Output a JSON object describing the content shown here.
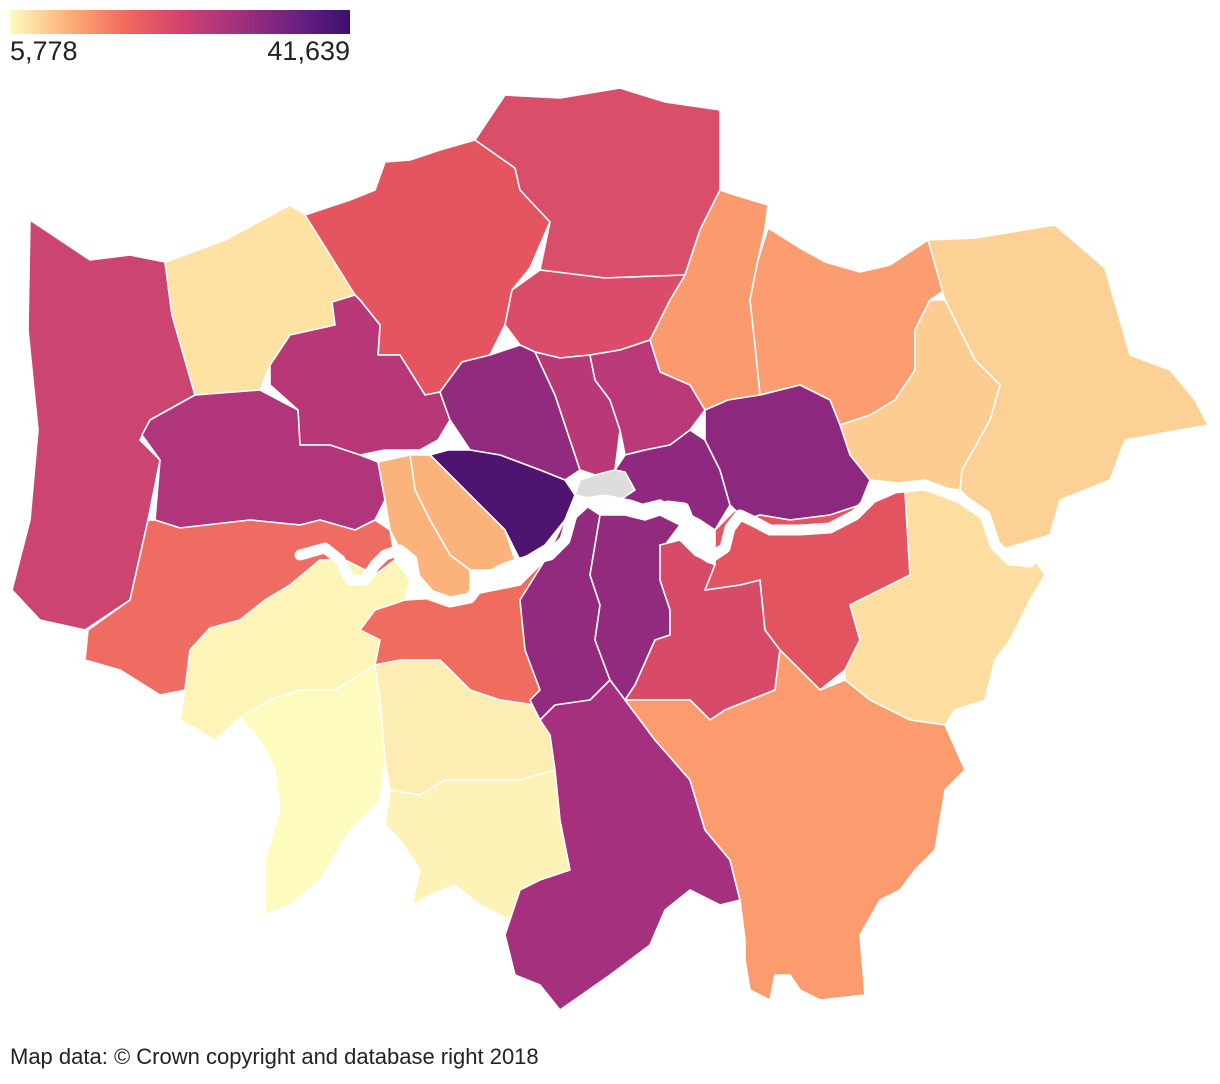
{
  "legend": {
    "min_label": "5,778",
    "max_label": "41,639",
    "min_value": 5778,
    "max_value": 41639,
    "colors": [
      "#fcfdbf",
      "#fcb27a",
      "#f06c5c",
      "#d3436e",
      "#a3307e",
      "#712181",
      "#3b0f70"
    ]
  },
  "attribution": "Map data: © Crown copyright and database right 2018",
  "no_data_color": "#dddddd",
  "boroughs": [
    {
      "name": "hillingdon",
      "color": "#cc4470"
    },
    {
      "name": "harrow",
      "color": "#fde2a4"
    },
    {
      "name": "barnet",
      "color": "#e4555f"
    },
    {
      "name": "enfield",
      "color": "#d94f6a"
    },
    {
      "name": "waltham-forest",
      "color": "#fb9a6d"
    },
    {
      "name": "redbridge",
      "color": "#fb9d70"
    },
    {
      "name": "havering",
      "color": "#fdd095"
    },
    {
      "name": "haringey",
      "color": "#da4d6a"
    },
    {
      "name": "brent",
      "color": "#b83777"
    },
    {
      "name": "ealing",
      "color": "#b0357a"
    },
    {
      "name": "camden",
      "color": "#922a7e"
    },
    {
      "name": "islington",
      "color": "#b93876"
    },
    {
      "name": "hackney",
      "color": "#bb3976"
    },
    {
      "name": "tower-hamlets",
      "color": "#8f297f"
    },
    {
      "name": "newham",
      "color": "#8d287f"
    },
    {
      "name": "barking-dagenham",
      "color": "#fdcc90"
    },
    {
      "name": "westminster",
      "color": "#4f146f"
    },
    {
      "name": "city-of-london",
      "color": "#dddddd"
    },
    {
      "name": "kensington-chelsea",
      "color": "#fcb37b"
    },
    {
      "name": "hammersmith-fulham",
      "color": "#fcb37b"
    },
    {
      "name": "hounslow",
      "color": "#ee6c62"
    },
    {
      "name": "richmond",
      "color": "#fdf5b7"
    },
    {
      "name": "kingston",
      "color": "#fdfbbd"
    },
    {
      "name": "wandsworth",
      "color": "#f06c5f"
    },
    {
      "name": "merton",
      "color": "#feedb2"
    },
    {
      "name": "sutton",
      "color": "#fef3b6"
    },
    {
      "name": "lambeth",
      "color": "#922a7e"
    },
    {
      "name": "southwark",
      "color": "#922a7e"
    },
    {
      "name": "croydon",
      "color": "#a5307d"
    },
    {
      "name": "lewisham",
      "color": "#d84b68"
    },
    {
      "name": "greenwich",
      "color": "#e25560"
    },
    {
      "name": "bexley",
      "color": "#fddda0"
    },
    {
      "name": "bromley",
      "color": "#fc9b6e"
    }
  ]
}
